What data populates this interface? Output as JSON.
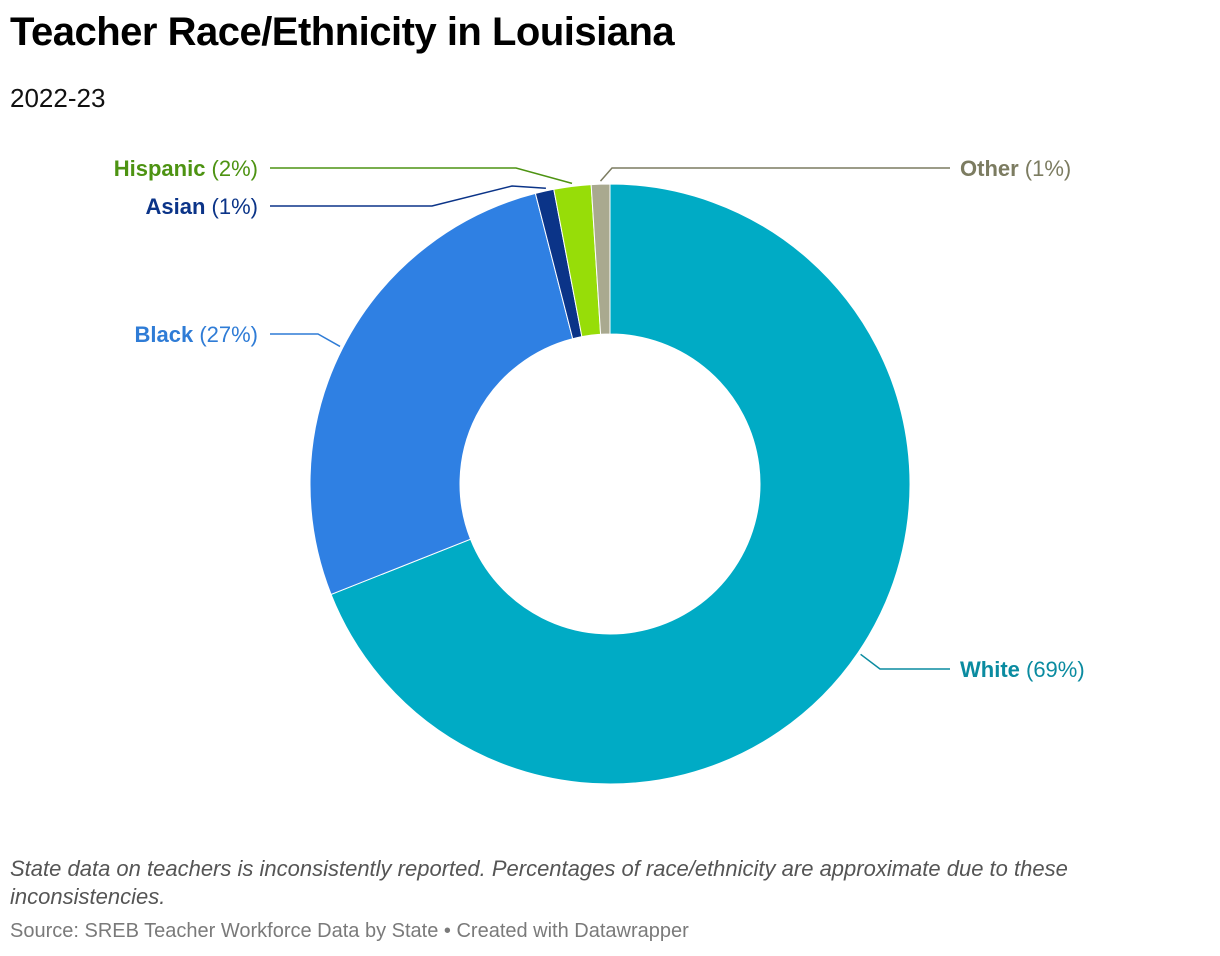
{
  "header": {
    "title": "Teacher Race/Ethnicity in Louisiana",
    "subtitle": "2022-23"
  },
  "chart_data": {
    "type": "pie",
    "donut": true,
    "title": "Teacher Race/Ethnicity in Louisiana",
    "subtitle": "2022-23",
    "start_angle_deg": 0,
    "direction": "clockwise",
    "slices": [
      {
        "name": "White",
        "value": 69,
        "label": "(69%)",
        "color": "#00abc5",
        "label_color": "#0a8ba0"
      },
      {
        "name": "Black",
        "value": 27,
        "label": "(27%)",
        "color": "#2f80e3",
        "label_color": "#2f7cd6"
      },
      {
        "name": "Asian",
        "value": 1,
        "label": "(1%)",
        "color": "#0b3488",
        "label_color": "#0b3488"
      },
      {
        "name": "Hispanic",
        "value": 2,
        "label": "(2%)",
        "color": "#97dd08",
        "label_color": "#4d9312"
      },
      {
        "name": "Other",
        "value": 1,
        "label": "(1%)",
        "color": "#a9a98f",
        "label_color": "#7c7c61"
      }
    ]
  },
  "footer": {
    "note": "State data on teachers is inconsistently reported. Percentages of race/ethnicity are approximate due to these inconsistencies.",
    "source": "Source: SREB Teacher Workforce Data by State • Created with Datawrapper"
  }
}
